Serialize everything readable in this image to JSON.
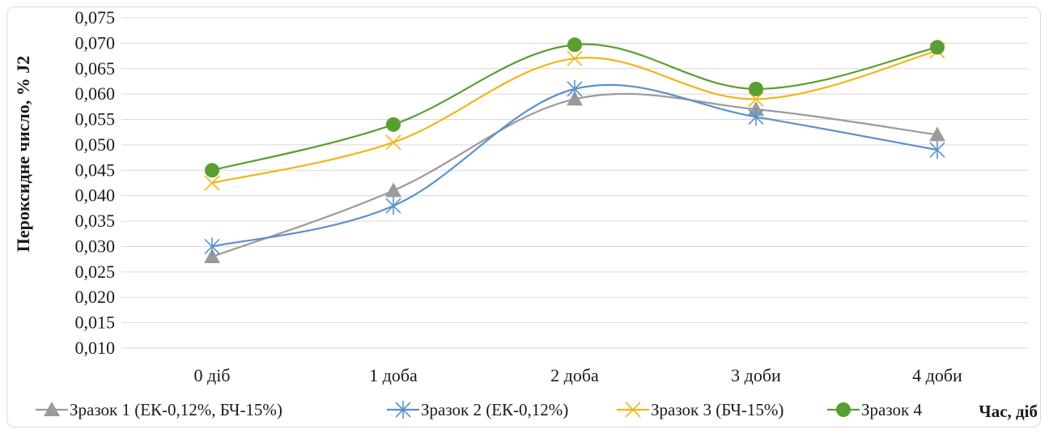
{
  "chart_data": {
    "type": "line",
    "categories": [
      "0 діб",
      "1 доба",
      "2 доба",
      "3 доби",
      "4 доби"
    ],
    "series": [
      {
        "name": "Зразок 1 (ЕК-0,12%, БЧ-15%)",
        "values": [
          0.028,
          0.041,
          0.059,
          0.057,
          0.052
        ],
        "color": "#9b9b9b",
        "marker": "triangle"
      },
      {
        "name": "Зразок 2 (ЕК-0,12%)",
        "values": [
          0.03,
          0.038,
          0.061,
          0.0555,
          0.049
        ],
        "color": "#5b8fd0",
        "marker": "asterisk"
      },
      {
        "name": "Зразок 3 (БЧ-15%)",
        "values": [
          0.0425,
          0.0505,
          0.067,
          0.059,
          0.0685
        ],
        "color": "#f2b515",
        "marker": "x"
      },
      {
        "name": "Зразок 4",
        "values": [
          0.045,
          0.054,
          0.0697,
          0.061,
          0.0692
        ],
        "color": "#5a9e32",
        "marker": "circle"
      }
    ],
    "yticks": [
      "0,010",
      "0,015",
      "0,020",
      "0,025",
      "0,030",
      "0,035",
      "0,040",
      "0,045",
      "0,050",
      "0,055",
      "0,060",
      "0,065",
      "0,070",
      "0,075"
    ],
    "ylim": [
      0.01,
      0.075
    ],
    "ylabel": "Пероксидне число, % J2",
    "xlabel": "Час, діб",
    "grid": true,
    "legend_position": "bottom",
    "smooth": true
  }
}
